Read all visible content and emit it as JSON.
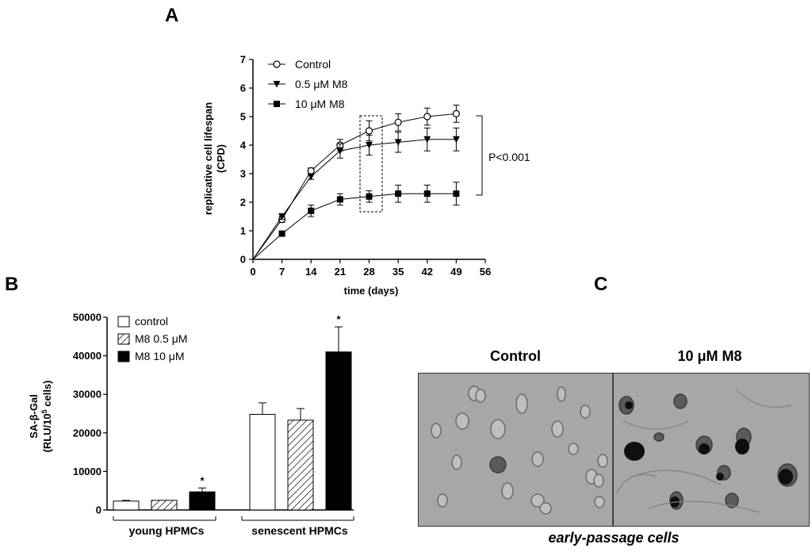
{
  "figure": {
    "panel_a": "A",
    "panel_b": "B",
    "panel_c": "C"
  },
  "chart_data": [
    {
      "id": "A",
      "type": "line",
      "xlabel": "time (days)",
      "ylabel": [
        "replicative cell lifespan",
        "(CPD)"
      ],
      "xlim": [
        0,
        56
      ],
      "ylim": [
        0,
        7
      ],
      "x_ticks": [
        "0",
        "7",
        "14",
        "21",
        "28",
        "35",
        "42",
        "49",
        "56"
      ],
      "y_ticks": [
        "0",
        "1",
        "2",
        "3",
        "4",
        "5",
        "6",
        "7"
      ],
      "x": [
        0,
        7,
        14,
        21,
        28,
        35,
        42,
        49
      ],
      "series": [
        {
          "name": "Control",
          "marker": "open-circle",
          "values": [
            0,
            1.4,
            3.1,
            4.0,
            4.5,
            4.8,
            5.0,
            5.1
          ],
          "errors": [
            0,
            0.1,
            0.1,
            0.2,
            0.35,
            0.3,
            0.3,
            0.3
          ]
        },
        {
          "name": "0.5 μM M8",
          "marker": "triangle-down",
          "values": [
            0,
            1.5,
            2.9,
            3.8,
            4.0,
            4.1,
            4.2,
            4.2
          ],
          "errors": [
            0,
            0.1,
            0.1,
            0.25,
            0.35,
            0.35,
            0.4,
            0.4
          ]
        },
        {
          "name": "10 μM M8",
          "marker": "filled-square",
          "values": [
            0,
            0.9,
            1.7,
            2.1,
            2.2,
            2.3,
            2.3,
            2.3
          ],
          "errors": [
            0,
            0.05,
            0.2,
            0.2,
            0.2,
            0.3,
            0.3,
            0.4
          ]
        }
      ],
      "annotation": "P<0.001",
      "legend_position": "top-left"
    },
    {
      "id": "B",
      "type": "bar",
      "ylabel": [
        "SA-β-Gal",
        "(RLU/10",
        "5",
        " cells)"
      ],
      "ylim": [
        0,
        50000
      ],
      "y_ticks": [
        "0",
        "10000",
        "20000",
        "30000",
        "40000",
        "50000"
      ],
      "categories": [
        "young HPMCs",
        "senescent HPMCs"
      ],
      "series": [
        {
          "name": "control",
          "fill": "white",
          "values": [
            2300,
            24800
          ],
          "errors": [
            200,
            3000
          ],
          "sig": [
            "",
            ""
          ]
        },
        {
          "name": "M8 0.5 μM",
          "fill": "hatched",
          "values": [
            2500,
            23300
          ],
          "errors": [
            0,
            3000
          ],
          "sig": [
            "",
            ""
          ]
        },
        {
          "name": "M8  10 μM",
          "fill": "black",
          "values": [
            4700,
            41000
          ],
          "errors": [
            1000,
            6500
          ],
          "sig": [
            "*",
            "*"
          ]
        }
      ],
      "legend_position": "top-left"
    }
  ],
  "panel_c": {
    "labels": [
      "Control",
      "10 μM M8"
    ],
    "caption": "early-passage cells"
  }
}
